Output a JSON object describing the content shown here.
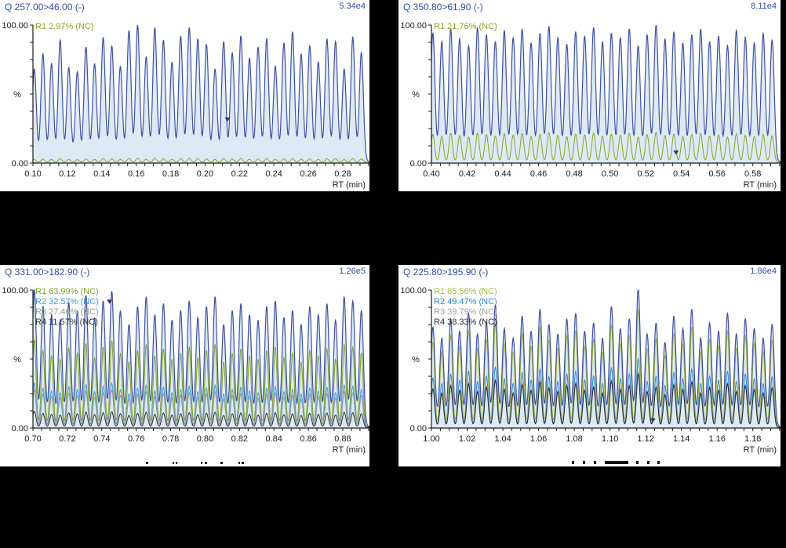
{
  "figure": {
    "background": "#000000",
    "panel_background": "#ffffff",
    "axis_color": "#1a1a1a",
    "label_color": "#2c4fa3"
  },
  "chart_data": [
    {
      "type": "line",
      "panel": "top-left",
      "transition": "Q 257.00>46.00 (-)",
      "scale_label": "5.34e4",
      "ylabel_top": "100.00",
      "ylabel_mid": "%",
      "ylabel_bottom": "0.00",
      "xlabel": "RT (min)",
      "ylim": [
        0,
        100
      ],
      "x_start": 0.1,
      "x_end": 0.2955,
      "x_tick_step": 0.02,
      "x_tick_labels": [
        "0.10",
        "0.12",
        "0.14",
        "0.16",
        "0.18",
        "0.20",
        "0.22",
        "0.24",
        "0.26",
        "0.28"
      ],
      "trace_color": "#3f51a0",
      "fill_color": "rgba(203,222,240,0.65)",
      "peak_spacing": 0.005,
      "peak_start_offset": 0.0008,
      "peaks": [
        67,
        78,
        71,
        88,
        68,
        65,
        83,
        71,
        90,
        84,
        69,
        95,
        99,
        76,
        97,
        88,
        72,
        91,
        97,
        89,
        85,
        67,
        87,
        79,
        91,
        75,
        83,
        89,
        69,
        86,
        94,
        78,
        84,
        72,
        89,
        87,
        67,
        90,
        79
      ],
      "legend": [
        {
          "label": "R1 2.97% (NC)",
          "color": "#8aa228",
          "ratio": 2.97
        }
      ],
      "marker": {
        "rt": 0.213,
        "height": 30
      },
      "cut_marks": []
    },
    {
      "type": "line",
      "panel": "top-right",
      "transition": "Q 350.80>61.90 (-)",
      "scale_label": "8.11e4",
      "ylabel_top": "100.00",
      "ylabel_mid": "%",
      "ylabel_bottom": "0.00",
      "xlabel": "RT (min)",
      "ylim": [
        0,
        100
      ],
      "x_start": 0.4,
      "x_end": 0.5955,
      "x_tick_step": 0.02,
      "x_tick_labels": [
        "0.40",
        "0.42",
        "0.44",
        "0.46",
        "0.48",
        "0.50",
        "0.52",
        "0.54",
        "0.56",
        "0.58"
      ],
      "trace_color": "#3f51a0",
      "fill_color": "rgba(203,222,240,0.65)",
      "peak_spacing": 0.005,
      "peak_start_offset": 0.0008,
      "peaks": [
        93,
        87,
        96,
        89,
        84,
        97,
        92,
        87,
        95,
        90,
        96,
        86,
        93,
        98,
        90,
        85,
        94,
        91,
        97,
        87,
        93,
        90,
        96,
        84,
        92,
        99,
        89,
        94,
        86,
        92,
        96,
        87,
        91,
        84,
        95,
        90,
        86,
        93,
        88
      ],
      "legend": [
        {
          "label": "R1 21.76% (NC)",
          "color": "#8aa228",
          "ratio": 21.76
        }
      ],
      "marker": {
        "rt": 0.537,
        "height": 6
      },
      "cut_marks": []
    },
    {
      "type": "line",
      "panel": "bottom-left",
      "transition": "Q 331.00>182.90 (-)",
      "scale_label": "1.26e5",
      "ylabel_top": "100.00",
      "ylabel_mid": "%",
      "ylabel_bottom": "0.00",
      "xlabel": "RT (min)",
      "ylim": [
        0,
        100
      ],
      "x_start": 0.7,
      "x_end": 0.8955,
      "x_tick_step": 0.02,
      "x_tick_labels": [
        "0.70",
        "0.72",
        "0.74",
        "0.76",
        "0.78",
        "0.80",
        "0.82",
        "0.84",
        "0.86",
        "0.88"
      ],
      "trace_color": "#3f51a0",
      "fill_color": "rgba(203,222,240,0.65)",
      "peak_spacing": 0.005,
      "peak_start_offset": 0.0008,
      "peaks": [
        99,
        87,
        81,
        77,
        90,
        84,
        95,
        79,
        91,
        98,
        84,
        74,
        87,
        94,
        81,
        89,
        77,
        84,
        91,
        79,
        87,
        94,
        74,
        84,
        89,
        81,
        77,
        87,
        91,
        79,
        84,
        74,
        87,
        81,
        89,
        77,
        94,
        91,
        84
      ],
      "legend": [
        {
          "label": "R1 63.99% (NC)",
          "color": "#7ba32b",
          "ratio": 63.99
        },
        {
          "label": "R2 32.57% (NC)",
          "color": "#3d9be9",
          "ratio": 32.57
        },
        {
          "label": "R3 27.46% (NC)",
          "color": "#9a9a9a",
          "ratio": 27.46
        },
        {
          "label": "R4 11.57% (NC)",
          "color": "#2b2b2b",
          "ratio": 11.57
        }
      ],
      "marker": {
        "rt": 0.7445,
        "height": 90
      },
      "cut_marks": [
        {
          "x": 186,
          "w": 3,
          "h": 3
        },
        {
          "x": 220,
          "w": 2,
          "h": 3
        },
        {
          "x": 224,
          "w": 2,
          "h": 3
        },
        {
          "x": 256,
          "w": 2,
          "h": 3
        },
        {
          "x": 261,
          "w": 3,
          "h": 3
        },
        {
          "x": 281,
          "w": 3,
          "h": 3
        },
        {
          "x": 304,
          "w": 2,
          "h": 3
        },
        {
          "x": 308,
          "w": 3,
          "h": 3
        }
      ]
    },
    {
      "type": "line",
      "panel": "bottom-right",
      "transition": "Q 225.80>195.90 (-)",
      "scale_label": "1.86e4",
      "ylabel_top": "100.00",
      "ylabel_mid": "%",
      "ylabel_bottom": "0.00",
      "xlabel": "RT (min)",
      "ylim": [
        0,
        100
      ],
      "x_start": 1.0,
      "x_end": 1.1955,
      "x_tick_step": 0.02,
      "x_tick_labels": [
        "1.00",
        "1.02",
        "1.04",
        "1.06",
        "1.08",
        "1.10",
        "1.12",
        "1.14",
        "1.16",
        "1.18"
      ],
      "trace_color": "#3f51a0",
      "fill_color": "rgba(203,222,240,0.65)",
      "peak_spacing": 0.005,
      "peak_start_offset": 0.0008,
      "peaks": [
        72,
        64,
        78,
        69,
        82,
        67,
        75,
        88,
        71,
        64,
        80,
        69,
        85,
        74,
        67,
        78,
        82,
        69,
        75,
        64,
        87,
        71,
        78,
        100,
        67,
        75,
        61,
        80,
        71,
        85,
        64,
        75,
        69,
        82,
        67,
        78,
        71,
        64,
        74
      ],
      "legend": [
        {
          "label": "R1 85.56% (NC)",
          "color": "#a6ba48",
          "ratio": 85.56
        },
        {
          "label": "R2 49.47% (NC)",
          "color": "#2f87e0",
          "ratio": 49.47
        },
        {
          "label": "R3 39.79% (NC)",
          "color": "#a0a0a0",
          "ratio": 39.79
        },
        {
          "label": "R4 38.33% (NC)",
          "color": "#2b2b2b",
          "ratio": 38.33
        }
      ],
      "marker": {
        "rt": 1.124,
        "height": 4
      },
      "cut_marks": [
        {
          "x": 221,
          "w": 3,
          "h": 4
        },
        {
          "x": 235,
          "w": 3,
          "h": 4
        },
        {
          "x": 249,
          "w": 3,
          "h": 4
        },
        {
          "x": 263,
          "w": 30,
          "h": 4
        },
        {
          "x": 303,
          "w": 3,
          "h": 4
        },
        {
          "x": 317,
          "w": 3,
          "h": 4
        },
        {
          "x": 330,
          "w": 3,
          "h": 4
        }
      ]
    }
  ]
}
